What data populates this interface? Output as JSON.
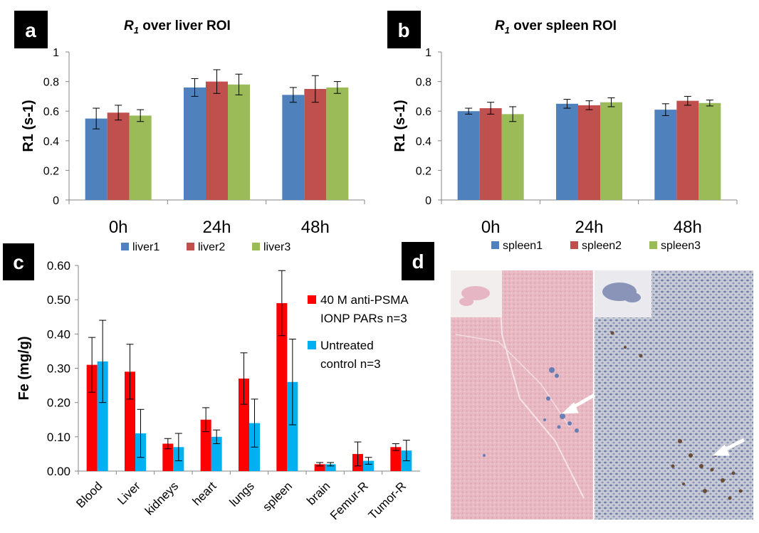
{
  "panels": {
    "a": {
      "letter": "a",
      "title_main": "R",
      "title_sub": "1",
      "title_rest": " over liver ROI"
    },
    "b": {
      "letter": "b",
      "title_main": "R",
      "title_sub": "1",
      "title_rest": " over spleen ROI"
    },
    "c": {
      "letter": "c"
    },
    "d": {
      "letter": "d"
    }
  },
  "colors": {
    "series1": "#4F81BD",
    "series2": "#C0504D",
    "series3": "#9BBB59",
    "treated": "#FF0000",
    "control": "#00B0F0"
  },
  "chart_data": [
    {
      "id": "a",
      "type": "bar",
      "title": "R1 over liver ROI",
      "ylabel": "R1 (s-1)",
      "xlabel": "",
      "ylim": [
        0,
        1
      ],
      "yticks": [
        0,
        0.2,
        0.4,
        0.6,
        0.8,
        1
      ],
      "ytick_labels": [
        "0",
        "0.2",
        "0.4",
        "0.6",
        "0.8",
        "1"
      ],
      "categories": [
        "0h",
        "24h",
        "48h"
      ],
      "series": [
        {
          "name": "liver1",
          "values": [
            0.55,
            0.76,
            0.71
          ],
          "errors": [
            0.07,
            0.06,
            0.05
          ]
        },
        {
          "name": "liver2",
          "values": [
            0.59,
            0.8,
            0.75
          ],
          "errors": [
            0.05,
            0.08,
            0.09
          ]
        },
        {
          "name": "liver3",
          "values": [
            0.57,
            0.78,
            0.76
          ],
          "errors": [
            0.04,
            0.07,
            0.04
          ]
        }
      ],
      "legend": "bottom"
    },
    {
      "id": "b",
      "type": "bar",
      "title": "R1 over spleen ROI",
      "ylabel": "R1 (s-1)",
      "xlabel": "",
      "ylim": [
        0,
        1
      ],
      "yticks": [
        0,
        0.2,
        0.4,
        0.6,
        0.8,
        1
      ],
      "ytick_labels": [
        "0",
        "0.2",
        "0.4",
        "0.6",
        "0.8",
        "1"
      ],
      "categories": [
        "0h",
        "24h",
        "48h"
      ],
      "series": [
        {
          "name": "spleen1",
          "values": [
            0.6,
            0.65,
            0.61
          ],
          "errors": [
            0.02,
            0.03,
            0.04
          ]
        },
        {
          "name": "spleen2",
          "values": [
            0.62,
            0.64,
            0.67
          ],
          "errors": [
            0.04,
            0.03,
            0.03
          ]
        },
        {
          "name": "spleen3",
          "values": [
            0.58,
            0.66,
            0.655
          ],
          "errors": [
            0.05,
            0.03,
            0.02
          ]
        }
      ],
      "legend": "bottom"
    },
    {
      "id": "c",
      "type": "bar",
      "title": "",
      "ylabel": "Fe (mg/g)",
      "xlabel": "",
      "ylim": [
        0,
        0.6
      ],
      "yticks": [
        0,
        0.1,
        0.2,
        0.3,
        0.4,
        0.5,
        0.6
      ],
      "ytick_labels": [
        "0.00",
        "0.10",
        "0.20",
        "0.30",
        "0.40",
        "0.50",
        "0.60"
      ],
      "categories": [
        "Blood",
        "Liver",
        "kidneys",
        "heart",
        "lungs",
        "spleen",
        "brain",
        "Femur-R",
        "Tumor-R"
      ],
      "series": [
        {
          "name": "40 M anti-PSMA IONP PARs n=3",
          "legend_lines": [
            "40 M anti-PSMA",
            "IONP PARs n=3"
          ],
          "values": [
            0.31,
            0.29,
            0.08,
            0.15,
            0.27,
            0.49,
            0.02,
            0.05,
            0.07
          ],
          "errors": [
            0.08,
            0.08,
            0.015,
            0.035,
            0.075,
            0.095,
            0.005,
            0.035,
            0.01
          ]
        },
        {
          "name": "Untreated control n=3",
          "legend_lines": [
            "Untreated",
            "control n=3"
          ],
          "values": [
            0.32,
            0.11,
            0.07,
            0.1,
            0.14,
            0.26,
            0.02,
            0.03,
            0.06
          ],
          "errors": [
            0.12,
            0.07,
            0.04,
            0.02,
            0.07,
            0.125,
            0.005,
            0.01,
            0.03
          ]
        }
      ],
      "legend": "right"
    }
  ]
}
